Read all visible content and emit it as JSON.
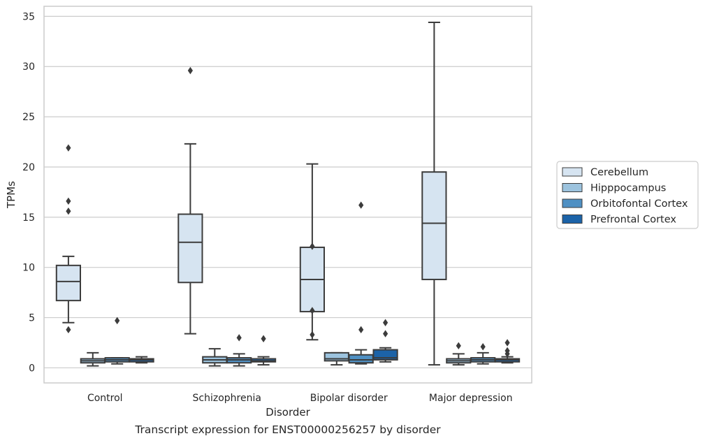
{
  "caption": "Transcript expression for ENST00000256257 by disorder",
  "colors": {
    "Cerebellum": "#d6e4f1",
    "Hipppocampus": "#9cc3de",
    "Orbitofontal Cortex": "#4f90c3",
    "Prefrontal Cortex": "#1c63a8",
    "box_edge": "#3c3c3c",
    "grid": "#cccccc",
    "frame": "#cccccc"
  },
  "chart_data": {
    "type": "box",
    "title": "",
    "xlabel": "Disorder",
    "ylabel": "TPMs",
    "ylim": [
      -1.5,
      36
    ],
    "yticks": [
      0,
      5,
      10,
      15,
      20,
      25,
      30,
      35
    ],
    "grid": "horizontal",
    "legend_position": "right",
    "categories": [
      "Control",
      "Schizophrenia",
      "Bipolar disorder",
      "Major depression"
    ],
    "series": [
      {
        "name": "Cerebellum",
        "boxes": [
          {
            "whislo": 4.5,
            "q1": 6.7,
            "med": 8.6,
            "q3": 10.2,
            "whishi": 11.1,
            "fliers": [
              3.8,
              15.6,
              16.6,
              21.9
            ]
          },
          {
            "whislo": 3.4,
            "q1": 8.5,
            "med": 12.5,
            "q3": 15.3,
            "whishi": 22.3,
            "fliers": [
              29.6
            ]
          },
          {
            "whislo": 2.8,
            "q1": 5.6,
            "med": 8.8,
            "q3": 12.0,
            "whishi": 20.3,
            "fliers": [
              3.3,
              5.7,
              12.1
            ]
          },
          {
            "whislo": 0.3,
            "q1": 8.8,
            "med": 14.4,
            "q3": 19.5,
            "whishi": 34.4,
            "fliers": []
          }
        ]
      },
      {
        "name": "Hipppocampus",
        "boxes": [
          {
            "whislo": 0.2,
            "q1": 0.5,
            "med": 0.7,
            "q3": 0.9,
            "whishi": 1.5,
            "fliers": []
          },
          {
            "whislo": 0.2,
            "q1": 0.5,
            "med": 0.8,
            "q3": 1.1,
            "whishi": 1.9,
            "fliers": []
          },
          {
            "whislo": 0.3,
            "q1": 0.7,
            "med": 0.9,
            "q3": 1.5,
            "whishi": 1.5,
            "fliers": []
          },
          {
            "whislo": 0.3,
            "q1": 0.5,
            "med": 0.7,
            "q3": 0.9,
            "whishi": 1.4,
            "fliers": [
              2.2
            ]
          }
        ]
      },
      {
        "name": "Orbitofontal Cortex",
        "boxes": [
          {
            "whislo": 0.4,
            "q1": 0.6,
            "med": 0.8,
            "q3": 1.0,
            "whishi": 1.0,
            "fliers": [
              4.7
            ]
          },
          {
            "whislo": 0.2,
            "q1": 0.5,
            "med": 0.8,
            "q3": 1.0,
            "whishi": 1.4,
            "fliers": [
              3.0
            ]
          },
          {
            "whislo": 0.4,
            "q1": 0.5,
            "med": 0.8,
            "q3": 1.3,
            "whishi": 1.8,
            "fliers": [
              3.8,
              16.2
            ]
          },
          {
            "whislo": 0.4,
            "q1": 0.6,
            "med": 0.8,
            "q3": 1.0,
            "whishi": 1.5,
            "fliers": [
              2.1
            ]
          }
        ]
      },
      {
        "name": "Prefrontal Cortex",
        "boxes": [
          {
            "whislo": 0.5,
            "q1": 0.6,
            "med": 0.8,
            "q3": 0.9,
            "whishi": 1.1,
            "fliers": []
          },
          {
            "whislo": 0.3,
            "q1": 0.6,
            "med": 0.7,
            "q3": 0.9,
            "whishi": 1.1,
            "fliers": [
              2.9
            ]
          },
          {
            "whislo": 0.6,
            "q1": 0.8,
            "med": 1.0,
            "q3": 1.8,
            "whishi": 2.0,
            "fliers": [
              3.4,
              4.5
            ]
          },
          {
            "whislo": 0.5,
            "q1": 0.6,
            "med": 0.8,
            "q3": 0.9,
            "whishi": 1.1,
            "fliers": [
              1.4,
              1.7,
              2.5
            ]
          }
        ]
      }
    ]
  }
}
